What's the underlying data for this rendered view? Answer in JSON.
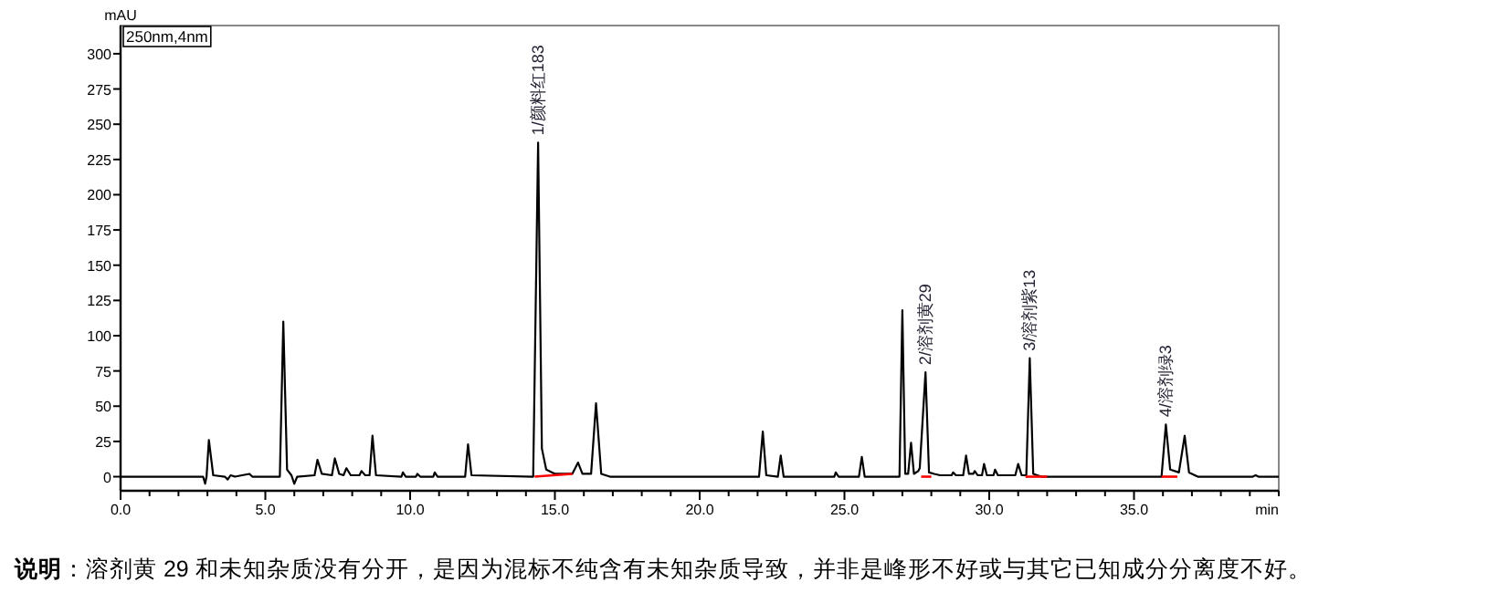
{
  "chart_data": {
    "type": "line",
    "xlabel": "min",
    "ylabel": "mAU",
    "xlim": [
      0,
      40
    ],
    "ylim": [
      -10,
      320
    ],
    "xticks": [
      {
        "value": 0,
        "label": "0.0"
      },
      {
        "value": 1,
        "label": null
      },
      {
        "value": 2,
        "label": null
      },
      {
        "value": 3,
        "label": null
      },
      {
        "value": 4,
        "label": null
      },
      {
        "value": 5,
        "label": "5.0"
      },
      {
        "value": 6,
        "label": null
      },
      {
        "value": 7,
        "label": null
      },
      {
        "value": 8,
        "label": null
      },
      {
        "value": 9,
        "label": null
      },
      {
        "value": 10,
        "label": "10.0"
      },
      {
        "value": 11,
        "label": null
      },
      {
        "value": 12,
        "label": null
      },
      {
        "value": 13,
        "label": null
      },
      {
        "value": 14,
        "label": null
      },
      {
        "value": 15,
        "label": "15.0"
      },
      {
        "value": 16,
        "label": null
      },
      {
        "value": 17,
        "label": null
      },
      {
        "value": 18,
        "label": null
      },
      {
        "value": 19,
        "label": null
      },
      {
        "value": 20,
        "label": "20.0"
      },
      {
        "value": 21,
        "label": null
      },
      {
        "value": 22,
        "label": null
      },
      {
        "value": 23,
        "label": null
      },
      {
        "value": 24,
        "label": null
      },
      {
        "value": 25,
        "label": "25.0"
      },
      {
        "value": 26,
        "label": null
      },
      {
        "value": 27,
        "label": null
      },
      {
        "value": 28,
        "label": null
      },
      {
        "value": 29,
        "label": null
      },
      {
        "value": 30,
        "label": "30.0"
      },
      {
        "value": 31,
        "label": null
      },
      {
        "value": 32,
        "label": null
      },
      {
        "value": 33,
        "label": null
      },
      {
        "value": 34,
        "label": null
      },
      {
        "value": 35,
        "label": "35.0"
      },
      {
        "value": 36,
        "label": null
      },
      {
        "value": 37,
        "label": null
      },
      {
        "value": 38,
        "label": null
      },
      {
        "value": 39,
        "label": null
      },
      {
        "value": 40,
        "label": null
      }
    ],
    "yticks": [
      0,
      25,
      50,
      75,
      100,
      125,
      150,
      175,
      200,
      225,
      250,
      275,
      300
    ],
    "series": [
      {
        "color": "#000000",
        "x": [
          0,
          2.85,
          2.92,
          2.97,
          3.05,
          3.2,
          3.6,
          3.7,
          3.8,
          3.95,
          4.45,
          4.55,
          5.5,
          5.62,
          5.75,
          5.9,
          6.0,
          6.1,
          6.7,
          6.8,
          6.95,
          7.3,
          7.4,
          7.55,
          7.7,
          7.8,
          7.95,
          8.25,
          8.32,
          8.45,
          8.6,
          8.7,
          8.82,
          9.7,
          9.75,
          9.85,
          10.2,
          10.25,
          10.35,
          10.8,
          10.85,
          10.95,
          11.9,
          12.0,
          12.12,
          14.25,
          14.42,
          14.55,
          14.7,
          15.0,
          15.6,
          15.8,
          15.95,
          16.25,
          16.42,
          16.6,
          16.9,
          22.05,
          22.18,
          22.3,
          22.7,
          22.8,
          22.9,
          24.65,
          24.7,
          24.8,
          25.5,
          25.6,
          25.7,
          26.9,
          27.0,
          27.1,
          27.2,
          27.3,
          27.4,
          27.55,
          27.6,
          27.8,
          27.92,
          28.1,
          28.3,
          28.7,
          28.75,
          28.85,
          29.1,
          29.2,
          29.3,
          29.45,
          29.5,
          29.6,
          29.75,
          29.82,
          29.92,
          30.15,
          30.2,
          30.3,
          30.9,
          31.0,
          31.12,
          31.28,
          31.4,
          31.52,
          31.8,
          35.95,
          36.1,
          36.25,
          36.55,
          36.75,
          36.9,
          37.2,
          39.1,
          39.2,
          39.3,
          40
        ],
        "values": [
          0,
          0,
          -5,
          0,
          26,
          1,
          0,
          -2,
          1,
          0,
          2,
          0,
          0,
          110,
          5,
          1,
          -5,
          0,
          1,
          12,
          2,
          1,
          13,
          2,
          1,
          6,
          1,
          1,
          4,
          1,
          1,
          29,
          1,
          0,
          3,
          0,
          0,
          2,
          0,
          0,
          3,
          0,
          0,
          23,
          1,
          0,
          237,
          20,
          5,
          2,
          2,
          10,
          2,
          2,
          52,
          2,
          0,
          0,
          32,
          1,
          0,
          15,
          0,
          0,
          3,
          0,
          0,
          14,
          0,
          0,
          118,
          2,
          2,
          24,
          2,
          4,
          6,
          74,
          3,
          2,
          1,
          1,
          3,
          1,
          1,
          15,
          2,
          2,
          4,
          1,
          1,
          9,
          1,
          1,
          5,
          1,
          1,
          9,
          1,
          1,
          84,
          2,
          0,
          0,
          37,
          5,
          3,
          29,
          3,
          0,
          0,
          1,
          0,
          0
        ]
      },
      {
        "color": "#ff0000",
        "x": [
          14.3,
          15.6
        ],
        "values": [
          0,
          2
        ]
      },
      {
        "color": "#ff0000",
        "x": [
          27.65,
          28.0
        ],
        "values": [
          0,
          0
        ]
      },
      {
        "color": "#ff0000",
        "x": [
          31.25,
          32.0
        ],
        "values": [
          0,
          0
        ]
      },
      {
        "color": "#ff0000",
        "x": [
          35.95,
          36.5
        ],
        "values": [
          0,
          0
        ]
      }
    ],
    "annotations": [
      {
        "text": "1/颜料红183",
        "x": 14.42,
        "y": 237
      },
      {
        "text": "2/溶剂黄29",
        "x": 27.8,
        "y": 74
      },
      {
        "text": "3/溶剂紫13",
        "x": 31.4,
        "y": 84
      },
      {
        "text": "4/溶剂绿3",
        "x": 36.1,
        "y": 37
      },
      "250nm,4nm",
      "**说明**：溶剂黄 29 和未知杂质没有分开，是因为混标不纯含有未知杂质导致，并非是峰形不好或与其它已知成分分离度不好。"
    ]
  }
}
